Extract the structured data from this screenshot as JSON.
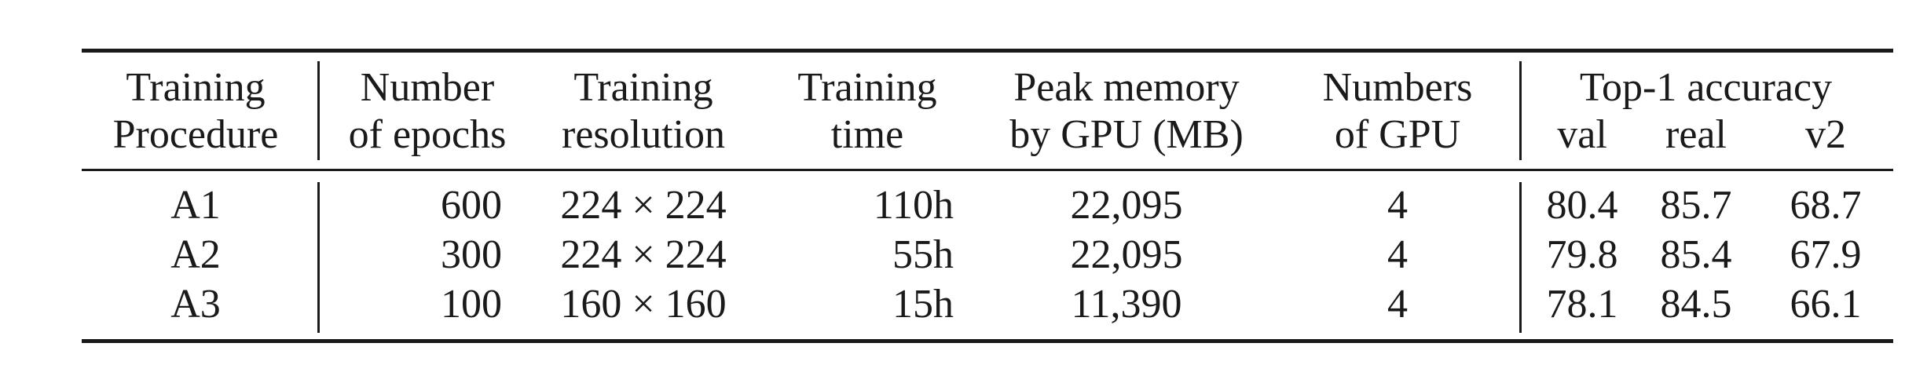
{
  "table": {
    "header": {
      "training_procedure": [
        "Training",
        "Procedure"
      ],
      "number_of_epochs": [
        "Number",
        "of epochs"
      ],
      "training_resolution": [
        "Training",
        "resolution"
      ],
      "training_time": [
        "Training",
        "time"
      ],
      "peak_memory": [
        "Peak memory",
        "by GPU (MB)"
      ],
      "numbers_of_gpu": [
        "Numbers",
        "of GPU"
      ],
      "top1_group": "Top-1 accuracy",
      "top1_sub": [
        "val",
        "real",
        "v2"
      ]
    },
    "rows": [
      {
        "procedure": "A1",
        "epochs": "600",
        "resolution": "224 × 224",
        "time": "110h",
        "memory": "22,095",
        "gpus": "4",
        "val": "80.4",
        "real": "85.7",
        "v2": "68.7"
      },
      {
        "procedure": "A2",
        "epochs": "300",
        "resolution": "224 × 224",
        "time": "55h",
        "memory": "22,095",
        "gpus": "4",
        "val": "79.8",
        "real": "85.4",
        "v2": "67.9"
      },
      {
        "procedure": "A3",
        "epochs": "100",
        "resolution": "160 × 160",
        "time": "15h",
        "memory": "11,390",
        "gpus": "4",
        "val": "78.1",
        "real": "84.5",
        "v2": "66.1"
      }
    ]
  }
}
